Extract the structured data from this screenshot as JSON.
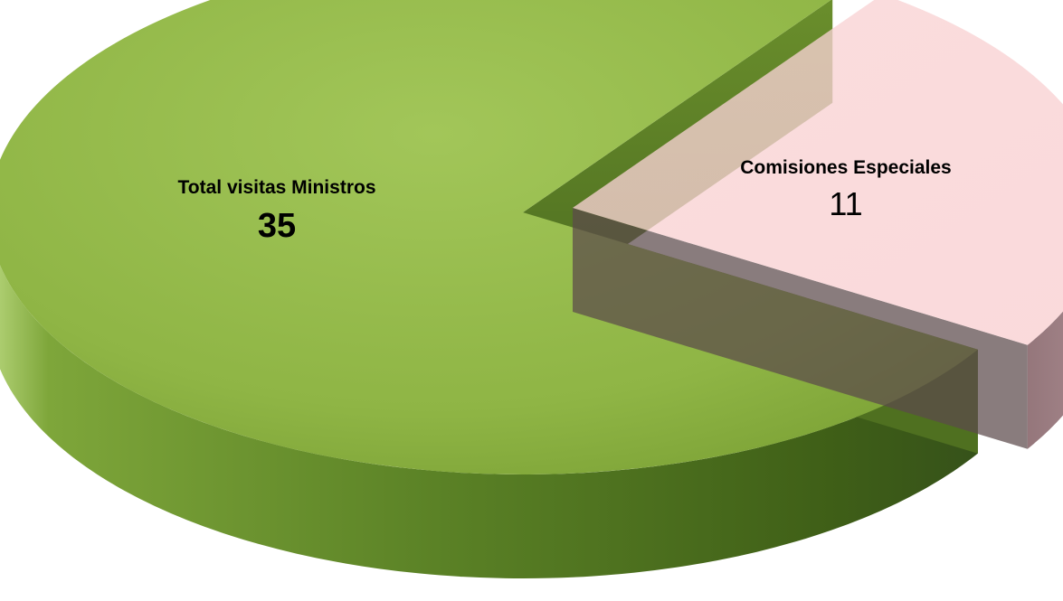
{
  "chart_data": {
    "type": "pie",
    "style": "3d-exploded",
    "slices": [
      {
        "label": "Total visitas Ministros",
        "value": 35,
        "color": "#8DB33F"
      },
      {
        "label": "Comisiones Especiales",
        "value": 11,
        "color": "#F9CFD0"
      }
    ],
    "legend": "none",
    "data_labels": "inside"
  }
}
